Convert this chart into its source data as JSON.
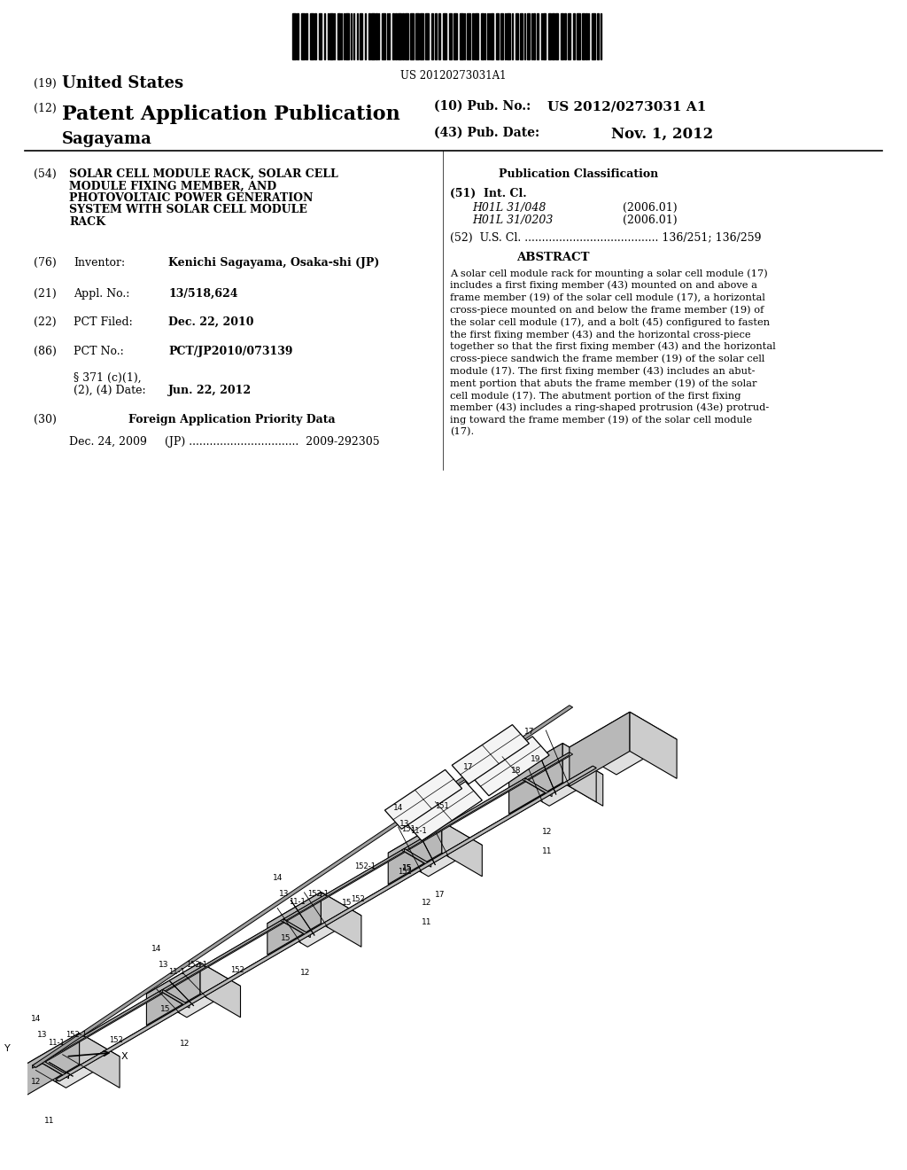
{
  "background_color": "#ffffff",
  "barcode_text": "US 20120273031A1",
  "title_19": "(19) United States",
  "title_12": "(12) Patent Application Publication",
  "pub_no_label": "(10) Pub. No.:",
  "pub_no_value": "US 2012/0273031 A1",
  "inventor_name": "Sagayama",
  "pub_date_label": "(43) Pub. Date:",
  "pub_date_value": "Nov. 1, 2012",
  "field54_text": "SOLAR CELL MODULE RACK, SOLAR CELL\nMODULE FIXING MEMBER, AND\nPHOTOVOLTAIC POWER GENERATION\nSYSTEM WITH SOLAR CELL MODULE\nRACK",
  "pub_class_label": "Publication Classification",
  "field51_class1": "H01L 31/048",
  "field51_year1": "(2006.01)",
  "field51_class2": "H01L 31/0203",
  "field51_year2": "(2006.01)",
  "field52_label": "(52)  U.S. Cl. ....................................... 136/251; 136/259",
  "field57_abstract": "ABSTRACT",
  "abstract_text": "A solar cell module rack for mounting a solar cell module (17)\nincludes a first fixing member (43) mounted on and above a\nframe member (19) of the solar cell module (17), a horizontal\ncross-piece mounted on and below the frame member (19) of\nthe solar cell module (17), and a bolt (45) configured to fasten\nthe first fixing member (43) and the horizontal cross-piece\ntogether so that the first fixing member (43) and the horizontal\ncross-piece sandwich the frame member (19) of the solar cell\nmodule (17). The first fixing member (43) includes an abut-\nment portion that abuts the frame member (19) of the solar\ncell module (17). The abutment portion of the first fixing\nmember (43) includes a ring-shaped protrusion (43e) protrud-\ning toward the frame member (19) of the solar cell module\n(17).",
  "field76_value": "Kenichi Sagayama, Osaka-shi (JP)",
  "field21_value": "13/518,624",
  "field22_value": "Dec. 22, 2010",
  "field86_value": "PCT/JP2010/073139",
  "field86b_value": "Jun. 22, 2012",
  "field30_data": "Dec. 24, 2009     (JP) ................................  2009-292305"
}
